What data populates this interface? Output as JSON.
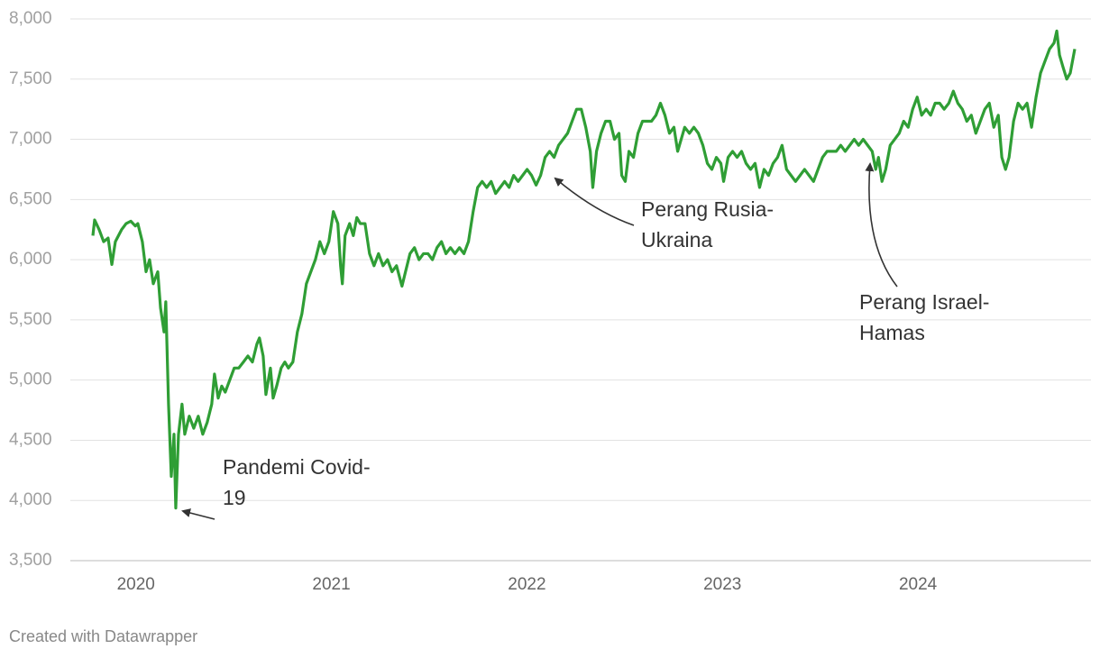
{
  "chart_data": {
    "type": "line",
    "color": "#2f9e35",
    "xlim": [
      2019.78,
      2024.802
    ],
    "xticks": [
      2020,
      2021,
      2022,
      2023,
      2024
    ],
    "ylim": [
      3500,
      8000
    ],
    "yticks": [
      {
        "value": 3500,
        "label": "3,500"
      },
      {
        "value": 4000,
        "label": "4,000"
      },
      {
        "value": 4500,
        "label": "4,500"
      },
      {
        "value": 5000,
        "label": "5,000"
      },
      {
        "value": 5500,
        "label": "5,500"
      },
      {
        "value": 6000,
        "label": "6,000"
      },
      {
        "value": 6500,
        "label": "6,500"
      },
      {
        "value": 7000,
        "label": "7,000"
      },
      {
        "value": 7500,
        "label": "7,500"
      },
      {
        "value": 8000,
        "label": "8,000"
      }
    ],
    "grid": true,
    "x": [
      2019.78,
      2019.789,
      2019.812,
      2019.835,
      2019.858,
      2019.877,
      2019.895,
      2019.927,
      2019.95,
      2019.974,
      2019.997,
      2020.01,
      2020.033,
      2020.052,
      2020.07,
      2020.089,
      2020.112,
      2020.126,
      2020.144,
      2020.153,
      2020.167,
      2020.181,
      2020.195,
      2020.204,
      2020.218,
      2020.236,
      2020.25,
      2020.273,
      2020.296,
      2020.319,
      2020.342,
      2020.365,
      2020.388,
      2020.402,
      2020.421,
      2020.439,
      2020.457,
      2020.48,
      2020.503,
      2020.526,
      2020.55,
      2020.573,
      2020.596,
      2020.619,
      2020.632,
      2020.651,
      2020.665,
      2020.688,
      2020.702,
      2020.72,
      2020.743,
      2020.762,
      2020.78,
      2020.803,
      2020.826,
      2020.849,
      2020.872,
      2020.895,
      2020.918,
      2020.941,
      2020.964,
      2020.987,
      2021.01,
      2021.033,
      2021.047,
      2021.056,
      2021.07,
      2021.093,
      2021.112,
      2021.13,
      2021.148,
      2021.172,
      2021.195,
      2021.218,
      2021.241,
      2021.264,
      2021.287,
      2021.31,
      2021.333,
      2021.361,
      2021.379,
      2021.402,
      2021.425,
      2021.448,
      2021.471,
      2021.494,
      2021.517,
      2021.54,
      2021.563,
      2021.586,
      2021.609,
      2021.632,
      2021.655,
      2021.678,
      2021.701,
      2021.725,
      2021.748,
      2021.771,
      2021.794,
      2021.817,
      2021.84,
      2021.863,
      2021.886,
      2021.909,
      2021.932,
      2021.955,
      2021.978,
      2022.001,
      2022.024,
      2022.047,
      2022.07,
      2022.093,
      2022.116,
      2022.139,
      2022.162,
      2022.185,
      2022.208,
      2022.231,
      2022.254,
      2022.278,
      2022.301,
      2022.324,
      2022.337,
      2022.356,
      2022.379,
      2022.402,
      2022.425,
      2022.448,
      2022.471,
      2022.485,
      2022.503,
      2022.522,
      2022.545,
      2022.568,
      2022.591,
      2022.614,
      2022.637,
      2022.66,
      2022.683,
      2022.706,
      2022.729,
      2022.752,
      2022.771,
      2022.789,
      2022.807,
      2022.831,
      2022.854,
      2022.877,
      2022.9,
      2022.923,
      2022.946,
      2022.969,
      2022.992,
      2023.006,
      2023.029,
      2023.052,
      2023.075,
      2023.098,
      2023.121,
      2023.144,
      2023.167,
      2023.19,
      2023.213,
      2023.236,
      2023.259,
      2023.282,
      2023.305,
      2023.328,
      2023.351,
      2023.374,
      2023.397,
      2023.42,
      2023.443,
      2023.466,
      2023.489,
      2023.512,
      2023.535,
      2023.559,
      2023.582,
      2023.605,
      2023.628,
      2023.651,
      2023.674,
      2023.697,
      2023.72,
      2023.743,
      2023.766,
      2023.784,
      2023.798,
      2023.816,
      2023.835,
      2023.858,
      2023.881,
      2023.904,
      2023.927,
      2023.95,
      2023.973,
      2023.996,
      2024.019,
      2024.042,
      2024.065,
      2024.088,
      2024.111,
      2024.134,
      2024.158,
      2024.181,
      2024.204,
      2024.227,
      2024.25,
      2024.273,
      2024.296,
      2024.319,
      2024.342,
      2024.365,
      2024.388,
      2024.411,
      2024.429,
      2024.448,
      2024.466,
      2024.489,
      2024.512,
      2024.535,
      2024.558,
      2024.581,
      2024.604,
      2024.627,
      2024.65,
      2024.673,
      2024.696,
      2024.71,
      2024.724,
      2024.742,
      2024.761,
      2024.779,
      2024.802
    ],
    "values": [
      6200,
      6330,
      6250,
      6150,
      6180,
      5960,
      6150,
      6250,
      6300,
      6320,
      6280,
      6300,
      6150,
      5900,
      6000,
      5800,
      5900,
      5600,
      5400,
      5650,
      4800,
      4200,
      4550,
      3937,
      4550,
      4800,
      4550,
      4700,
      4600,
      4700,
      4550,
      4650,
      4800,
      5050,
      4850,
      4950,
      4900,
      5000,
      5100,
      5100,
      5150,
      5200,
      5150,
      5300,
      5350,
      5200,
      4880,
      5100,
      4850,
      4950,
      5100,
      5150,
      5100,
      5150,
      5400,
      5550,
      5800,
      5900,
      6000,
      6150,
      6050,
      6150,
      6400,
      6300,
      5950,
      5800,
      6200,
      6300,
      6200,
      6350,
      6300,
      6300,
      6050,
      5950,
      6050,
      5950,
      6000,
      5900,
      5950,
      5780,
      5900,
      6050,
      6100,
      6000,
      6050,
      6050,
      6000,
      6100,
      6150,
      6050,
      6100,
      6050,
      6100,
      6050,
      6150,
      6400,
      6600,
      6650,
      6600,
      6650,
      6550,
      6600,
      6650,
      6600,
      6700,
      6650,
      6700,
      6750,
      6700,
      6620,
      6700,
      6850,
      6900,
      6850,
      6950,
      7000,
      7050,
      7150,
      7250,
      7250,
      7100,
      6900,
      6600,
      6900,
      7050,
      7150,
      7150,
      7000,
      7050,
      6700,
      6650,
      6900,
      6850,
      7050,
      7150,
      7150,
      7150,
      7200,
      7300,
      7200,
      7050,
      7100,
      6900,
      7000,
      7100,
      7050,
      7100,
      7050,
      6950,
      6800,
      6750,
      6850,
      6800,
      6650,
      6850,
      6900,
      6850,
      6900,
      6800,
      6750,
      6800,
      6600,
      6750,
      6700,
      6800,
      6850,
      6950,
      6750,
      6700,
      6650,
      6700,
      6750,
      6700,
      6650,
      6750,
      6850,
      6900,
      6900,
      6900,
      6950,
      6900,
      6950,
      7000,
      6950,
      7000,
      6950,
      6900,
      6750,
      6850,
      6650,
      6750,
      6950,
      7000,
      7050,
      7150,
      7100,
      7250,
      7350,
      7200,
      7250,
      7200,
      7300,
      7300,
      7250,
      7300,
      7400,
      7300,
      7250,
      7150,
      7200,
      7050,
      7150,
      7250,
      7300,
      7100,
      7200,
      6850,
      6750,
      6850,
      7150,
      7300,
      7250,
      7300,
      7100,
      7350,
      7550,
      7650,
      7750,
      7800,
      7900,
      7700,
      7600,
      7500,
      7550,
      7750
    ],
    "annotations": [
      {
        "text": [
          "Pandemi Covid-",
          "19"
        ]
      },
      {
        "text": [
          "Perang Rusia-",
          "Ukraina"
        ]
      },
      {
        "text": [
          "Perang Israel-",
          "Hamas"
        ]
      }
    ]
  },
  "footer": "Created with Datawrapper"
}
